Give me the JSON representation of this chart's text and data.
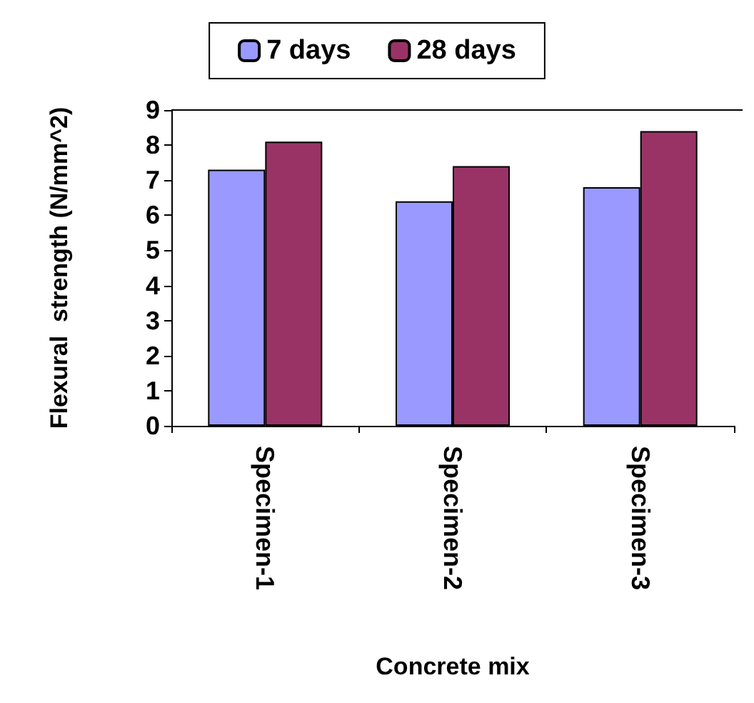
{
  "chart_data": {
    "type": "bar",
    "xlabel": "Concrete mix",
    "ylabel": "Flexural  strength (N/mm^2)",
    "categories": [
      "Specimen-1",
      "Specimen-2",
      "Specimen-3"
    ],
    "series": [
      {
        "name": "7 days",
        "color": "#9999ff",
        "values": [
          7.3,
          6.4,
          6.8
        ]
      },
      {
        "name": "28 days",
        "color": "#993366",
        "values": [
          8.1,
          7.4,
          8.4
        ]
      }
    ],
    "ylim": [
      0,
      9
    ],
    "yticks": [
      0,
      1,
      2,
      3,
      4,
      5,
      6,
      7,
      8,
      9
    ],
    "grid": false,
    "legend": "top"
  }
}
